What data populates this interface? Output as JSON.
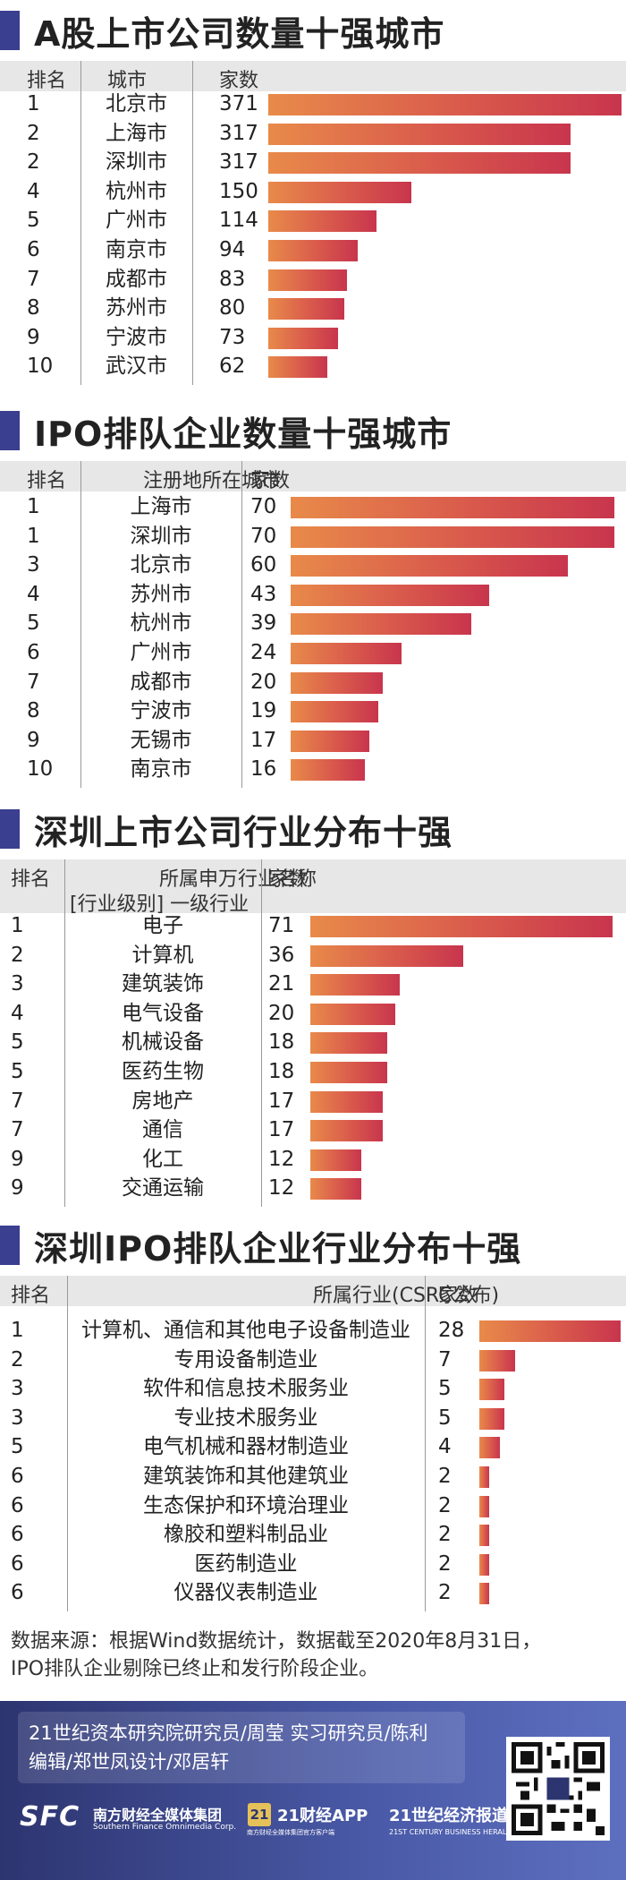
{
  "chart_data": [
    {
      "type": "bar",
      "title": "A股上市公司数量十强城市",
      "columns": [
        "排名",
        "城市",
        "家数"
      ],
      "ranks": [
        "1",
        "2",
        "2",
        "4",
        "5",
        "6",
        "7",
        "8",
        "9",
        "10"
      ],
      "categories": [
        "北京市",
        "上海市",
        "深圳市",
        "杭州市",
        "广州市",
        "南京市",
        "成都市",
        "苏州市",
        "宁波市",
        "武汉市"
      ],
      "values": [
        371,
        317,
        317,
        150,
        114,
        94,
        83,
        80,
        73,
        62
      ],
      "max": 371
    },
    {
      "type": "bar",
      "title": "IPO排队企业数量十强城市",
      "columns": [
        "排名",
        "注册地所在城市",
        "家数"
      ],
      "ranks": [
        "1",
        "1",
        "3",
        "4",
        "5",
        "6",
        "7",
        "8",
        "9",
        "10"
      ],
      "categories": [
        "上海市",
        "深圳市",
        "北京市",
        "苏州市",
        "杭州市",
        "广州市",
        "成都市",
        "宁波市",
        "无锡市",
        "南京市"
      ],
      "values": [
        70,
        70,
        60,
        43,
        39,
        24,
        20,
        19,
        17,
        16
      ],
      "max": 70
    },
    {
      "type": "bar",
      "title": "深圳上市公司行业分布十强",
      "columns": [
        "排名",
        "所属申万行业名称",
        "家数"
      ],
      "column_sub": "[行业级别] 一级行业",
      "ranks": [
        "1",
        "2",
        "3",
        "4",
        "5",
        "5",
        "7",
        "7",
        "9",
        "9"
      ],
      "categories": [
        "电子",
        "计算机",
        "建筑装饰",
        "电气设备",
        "机械设备",
        "医药生物",
        "房地产",
        "通信",
        "化工",
        "交通运输"
      ],
      "values": [
        71,
        36,
        21,
        20,
        18,
        18,
        17,
        17,
        12,
        12
      ],
      "max": 71
    },
    {
      "type": "bar",
      "title": "深圳IPO排队企业行业分布十强",
      "columns": [
        "排名",
        "所属行业(CSRC公布)",
        "家数"
      ],
      "ranks": [
        "1",
        "2",
        "3",
        "3",
        "5",
        "6",
        "6",
        "6",
        "6",
        "6"
      ],
      "categories": [
        "计算机、通信和其他电子设备制造业",
        "专用设备制造业",
        "软件和信息技术服务业",
        "专业技术服务业",
        "电气机械和器材制造业",
        "建筑装饰和其他建筑业",
        "生态保护和环境治理业",
        "橡胶和塑料制品业",
        "医药制造业",
        "仪器仪表制造业"
      ],
      "values": [
        28,
        7,
        5,
        5,
        4,
        2,
        2,
        2,
        2,
        2
      ],
      "max": 28
    }
  ],
  "source": {
    "line1": "数据来源：根据Wind数据统计，数据截至2020年8月31日，",
    "line2": "IPO排队企业剔除已终止和发行阶段企业。"
  },
  "footer": {
    "credit_line1": "21世纪资本研究院研究员/周莹 实习研究员/陈利",
    "credit_line2": "编辑/郑世凤设计/邓居轩",
    "sfc": "SFC",
    "sfc_cn": "南方财经全媒体集团",
    "sfc_en": "Southern Finance Omnimedia Corp.",
    "app_badge": "21",
    "app_cn": "21财经APP",
    "app_sub": "南方财经全媒体集团官方客户端",
    "herald_cn": "21世纪经济报道",
    "herald_en": "21ST CENTURY BUSINESS HERALD"
  },
  "colors": {
    "accent": "#3a3f8f",
    "bar_start": "#e88a4a",
    "bar_end": "#c8354d",
    "header_bg": "#e7e7e7",
    "footer_bg": "#3a4590"
  }
}
